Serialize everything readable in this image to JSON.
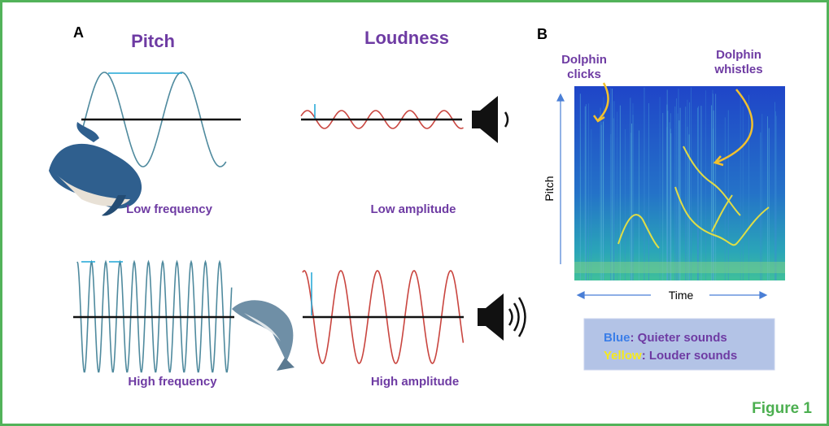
{
  "panel_a": {
    "label": "A",
    "pitch_title": "Pitch",
    "loudness_title": "Loudness",
    "low_frequency": "Low frequency",
    "low_amplitude": "Low amplitude",
    "high_frequency": "High frequency",
    "high_amplitude": "High amplitude"
  },
  "panel_b": {
    "label": "B",
    "clicks_label": "Dolphin clicks",
    "whistles_label": "Dolphin whistles",
    "y_axis": "Pitch",
    "x_axis": "Time",
    "legend": {
      "blue_word": "Blue",
      "blue_text": ": Quieter sounds",
      "yellow_word": "Yellow",
      "yellow_text": ": Louder sounds"
    }
  },
  "caption": "Figure 1"
}
